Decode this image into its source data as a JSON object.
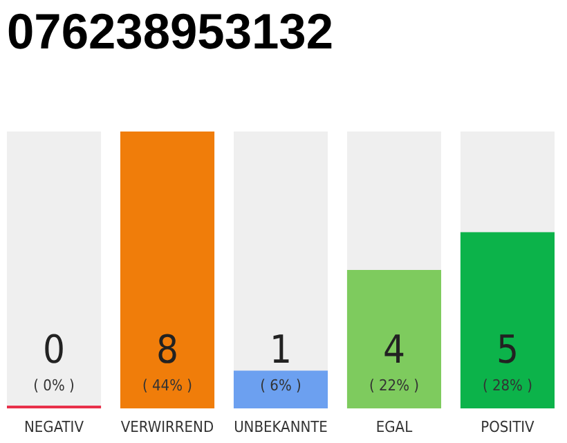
{
  "chart_data": {
    "type": "bar",
    "title": "076238953132",
    "categories": [
      "NEGATIV",
      "VERWIRREND",
      "UNBEKANNTE",
      "EGAL",
      "POSITIV"
    ],
    "values": [
      0,
      44,
      6,
      22,
      28
    ],
    "colors": [
      "#e8304a",
      "#f07d0a",
      "#6ca0f0",
      "#7ecb5e",
      "#0cb34a"
    ],
    "value_labels": [
      "( 0% )",
      "( 44% )",
      "( 6% )",
      "( 22% )",
      "( 28% )"
    ],
    "annotations": [
      "0",
      "8",
      "1",
      "4",
      "5"
    ]
  }
}
